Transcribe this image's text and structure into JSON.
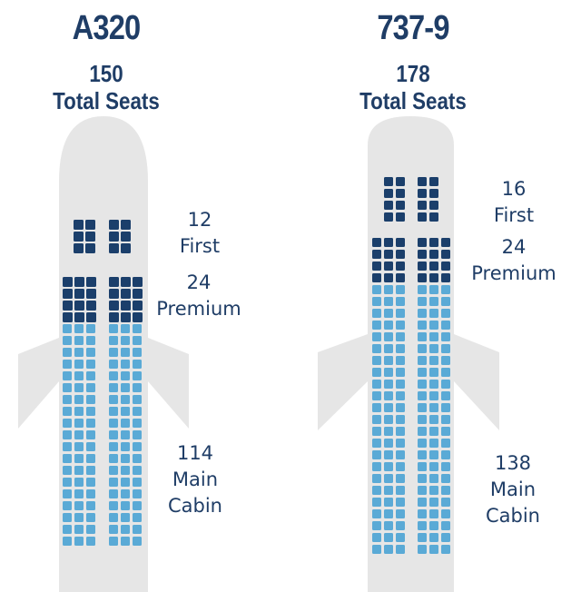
{
  "colors": {
    "fuselage": "#e6e6e6",
    "first": "#1b3f6b",
    "premium": "#1b3f6b",
    "main": "#5aaad6",
    "text": "#1f3d66"
  },
  "planes": [
    {
      "model": "A320",
      "total_number": "150",
      "total_label": "Total Seats",
      "cabins": [
        {
          "count": "12",
          "name": "First",
          "seats": 12
        },
        {
          "count": "24",
          "name": "Premium",
          "seats": 24
        },
        {
          "count": "114",
          "name1": "Main",
          "name2": "Cabin",
          "seats": 114
        }
      ]
    },
    {
      "model": "737-9",
      "total_number": "178",
      "total_label": "Total Seats",
      "cabins": [
        {
          "count": "16",
          "name": "First",
          "seats": 16
        },
        {
          "count": "24",
          "name": "Premium",
          "seats": 24
        },
        {
          "count": "138",
          "name1": "Main",
          "name2": "Cabin",
          "seats": 138
        }
      ]
    }
  ]
}
